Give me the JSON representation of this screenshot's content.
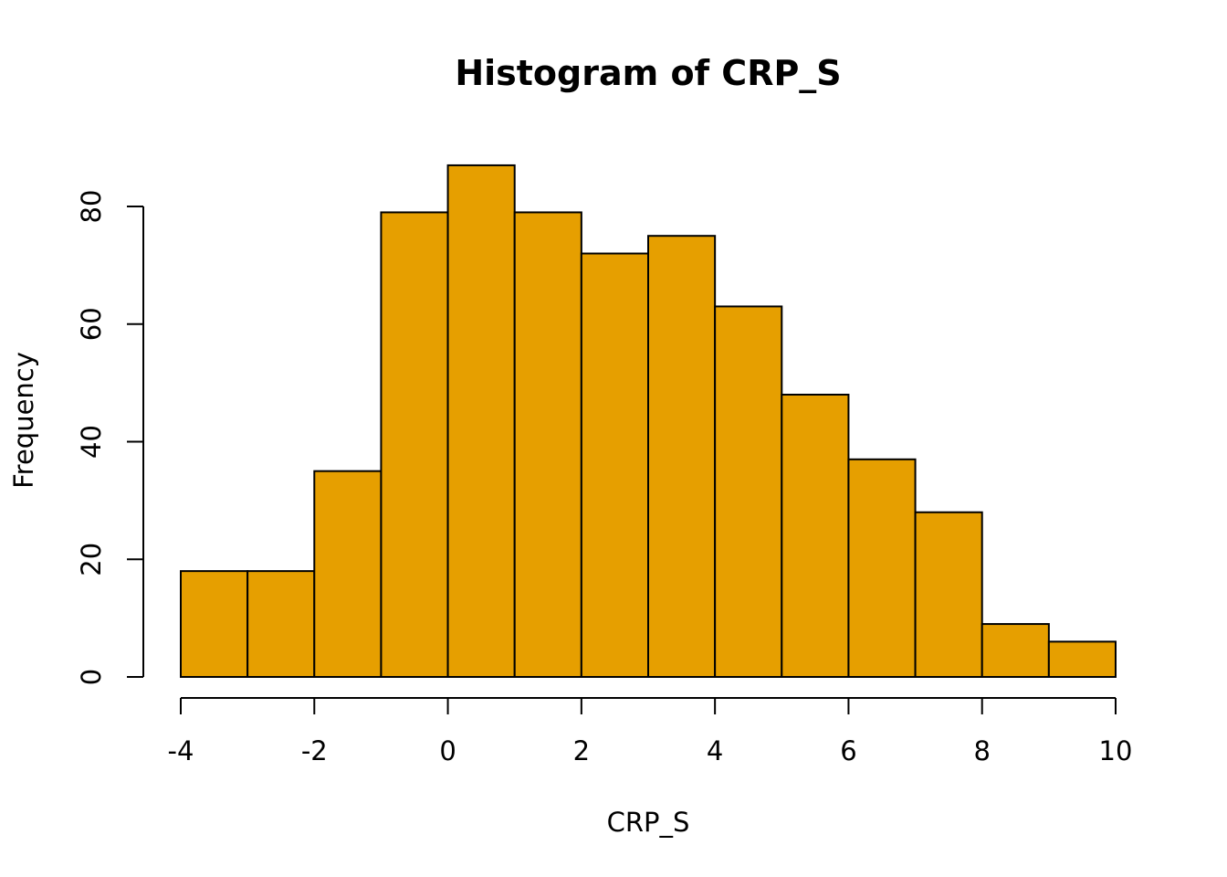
{
  "chart_data": {
    "type": "bar",
    "title": "Histogram of CRP_S",
    "xlabel": "CRP_S",
    "ylabel": "Frequency",
    "bins": [
      {
        "from": -4,
        "to": -3,
        "count": 18
      },
      {
        "from": -3,
        "to": -2,
        "count": 18
      },
      {
        "from": -2,
        "to": -1,
        "count": 35
      },
      {
        "from": -1,
        "to": 0,
        "count": 79
      },
      {
        "from": 0,
        "to": 1,
        "count": 87
      },
      {
        "from": 1,
        "to": 2,
        "count": 79
      },
      {
        "from": 2,
        "to": 3,
        "count": 72
      },
      {
        "from": 3,
        "to": 4,
        "count": 75
      },
      {
        "from": 4,
        "to": 5,
        "count": 63
      },
      {
        "from": 5,
        "to": 6,
        "count": 48
      },
      {
        "from": 6,
        "to": 7,
        "count": 37
      },
      {
        "from": 7,
        "to": 8,
        "count": 28
      },
      {
        "from": 8,
        "to": 9,
        "count": 9
      },
      {
        "from": 9,
        "to": 10,
        "count": 6
      }
    ],
    "xlim": [
      -4,
      10
    ],
    "ylim": [
      0,
      87
    ],
    "xticks": [
      -4,
      -2,
      0,
      2,
      4,
      6,
      8,
      10
    ],
    "xtick_labels": [
      "-4",
      "-2",
      "0",
      "2",
      "4",
      "6",
      "8",
      "10"
    ],
    "yticks": [
      0,
      20,
      40,
      60,
      80
    ],
    "ytick_labels": [
      "0",
      "20",
      "40",
      "60",
      "80"
    ],
    "grid": false,
    "bar_color": "#E69F00",
    "edge_color": "#000000"
  }
}
